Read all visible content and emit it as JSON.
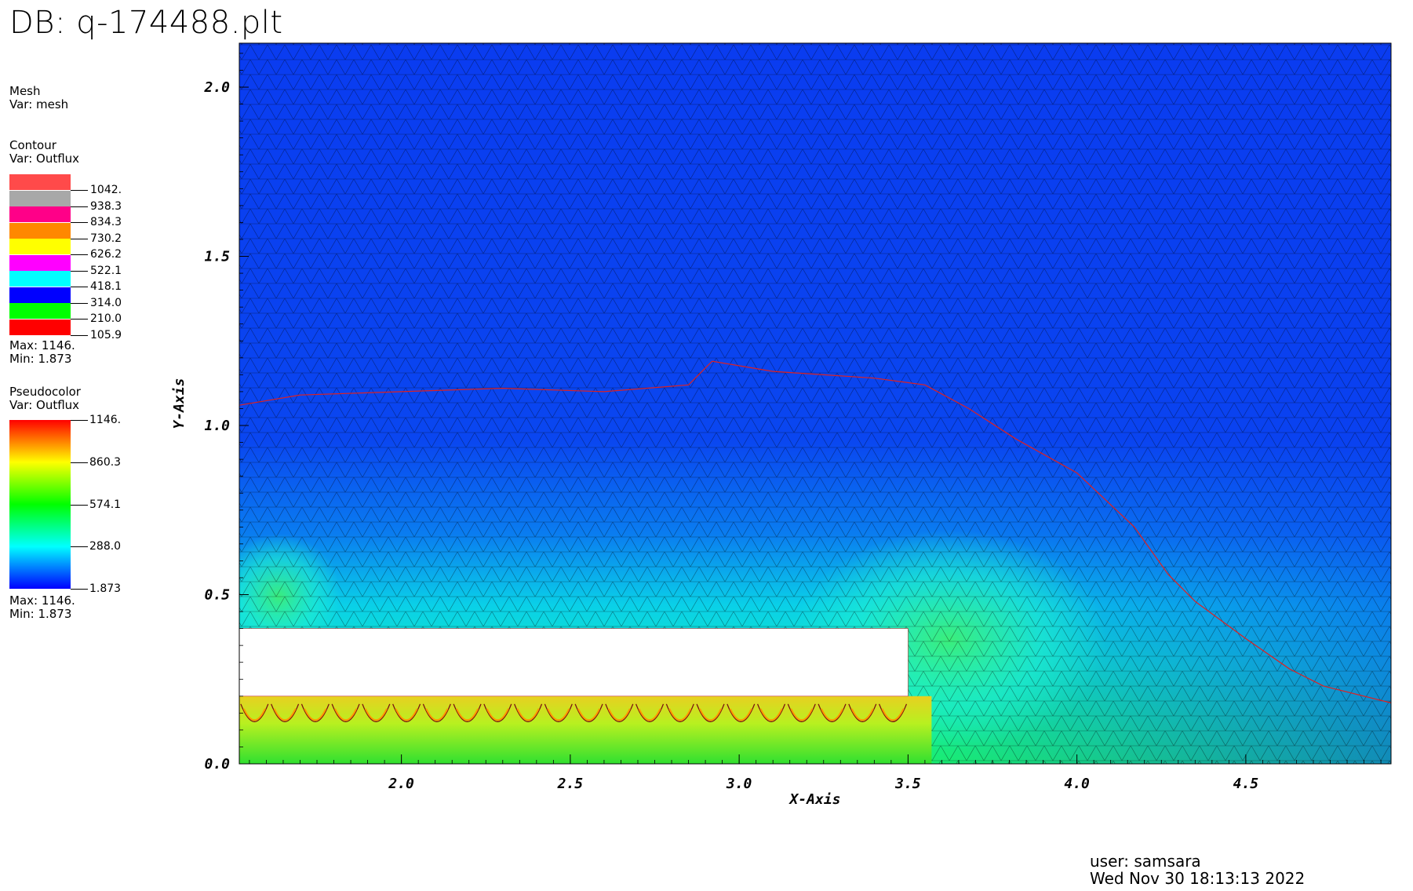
{
  "db_title": "DB: q-174488.plt",
  "legend": {
    "mesh": {
      "title": "Mesh",
      "var": "Var: mesh"
    },
    "contour": {
      "title": "Contour",
      "var": "Var: Outflux",
      "levels": [
        {
          "value": "1042.",
          "color": "#ff4a4a"
        },
        {
          "value": "938.3",
          "color": "#a8a8a8"
        },
        {
          "value": "834.3",
          "color": "#ff0088"
        },
        {
          "value": "730.2",
          "color": "#ff8800"
        },
        {
          "value": "626.2",
          "color": "#ffff00"
        },
        {
          "value": "522.1",
          "color": "#ff00ff"
        },
        {
          "value": "418.1",
          "color": "#00ffff"
        },
        {
          "value": "314.0",
          "color": "#0000ff"
        },
        {
          "value": "210.0",
          "color": "#00ff00"
        },
        {
          "value": "105.9",
          "color": "#ff0000"
        }
      ],
      "max": "Max:  1146.",
      "min": "Min:  1.873"
    },
    "pseudocolor": {
      "title": "Pseudocolor",
      "var": "Var: Outflux",
      "labels": [
        "1146.",
        "860.3",
        "574.1",
        "288.0",
        "1.873"
      ],
      "max": "Max:  1146.",
      "min": "Min:  1.873"
    }
  },
  "chart_data": {
    "type": "heatmap",
    "title": "DB: q-174488.plt",
    "xlabel": "X-Axis",
    "ylabel": "Y-Axis",
    "xlim": [
      1.52,
      4.93
    ],
    "ylim": [
      0.0,
      2.13
    ],
    "xticks": [
      "2.0",
      "2.5",
      "3.0",
      "3.5",
      "4.0",
      "4.5"
    ],
    "yticks": [
      "0.0",
      "0.5",
      "1.0",
      "1.5",
      "2.0"
    ],
    "variable": "Outflux",
    "value_range": [
      1.873,
      1146
    ],
    "obstacle_region": {
      "x": [
        1.52,
        3.5
      ],
      "y": [
        0.2,
        0.4
      ]
    },
    "contour_105_9_path": [
      [
        1.52,
        1.06
      ],
      [
        1.7,
        1.09
      ],
      [
        2.0,
        1.1
      ],
      [
        2.3,
        1.11
      ],
      [
        2.6,
        1.1
      ],
      [
        2.85,
        1.12
      ],
      [
        2.92,
        1.19
      ],
      [
        3.1,
        1.16
      ],
      [
        3.4,
        1.14
      ],
      [
        3.55,
        1.12
      ],
      [
        3.68,
        1.05
      ],
      [
        3.82,
        0.96
      ],
      [
        4.0,
        0.86
      ],
      [
        4.17,
        0.7
      ],
      [
        4.27,
        0.56
      ],
      [
        4.35,
        0.48
      ],
      [
        4.5,
        0.37
      ],
      [
        4.63,
        0.28
      ],
      [
        4.73,
        0.23
      ],
      [
        4.93,
        0.18
      ]
    ]
  },
  "user_info": {
    "user": "user: samsara",
    "timestamp": "Wed Nov 30 18:13:13 2022"
  }
}
